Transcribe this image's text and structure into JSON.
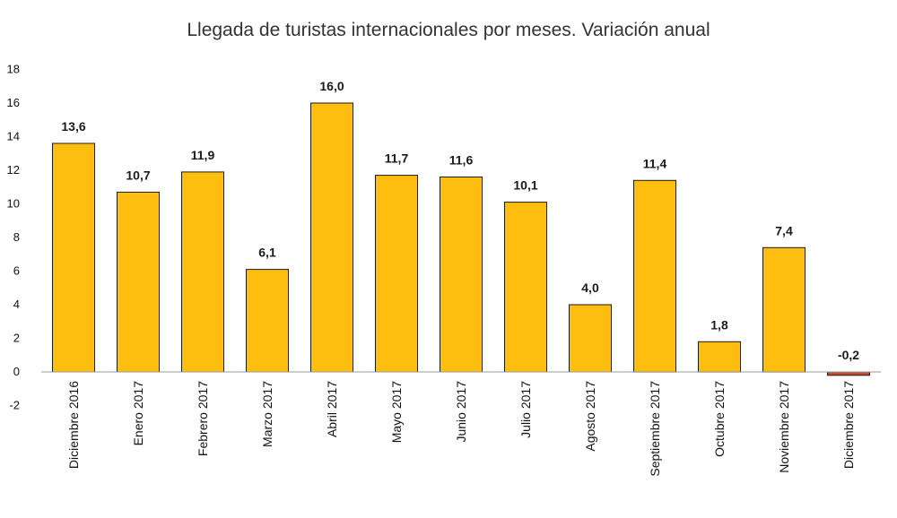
{
  "chart_data": {
    "type": "bar",
    "title": "Llegada de turistas internacionales por meses. Variación anual",
    "categories": [
      "Diciembre 2016",
      "Enero 2017",
      "Febrero 2017",
      "Marzo 2017",
      "Abril 2017",
      "Mayo 2017",
      "Junio 2017",
      "Julio 2017",
      "Agosto 2017",
      "Septiembre 2017",
      "Octubre 2017",
      "Noviembre 2017",
      "Diciembre 2017"
    ],
    "values": [
      13.6,
      10.7,
      11.9,
      6.1,
      16.0,
      11.7,
      11.6,
      10.1,
      4.0,
      11.4,
      1.8,
      7.4,
      -0.2
    ],
    "value_labels": [
      "13,6",
      "10,7",
      "11,9",
      "6,1",
      "16,0",
      "11,7",
      "11,6",
      "10,1",
      "4,0",
      "11,4",
      "1,8",
      "7,4",
      "-0,2"
    ],
    "y_ticks": [
      -2,
      0,
      2,
      4,
      6,
      8,
      10,
      12,
      14,
      16,
      18
    ],
    "y_tick_labels": [
      "-2",
      "0",
      "2",
      "4",
      "6",
      "8",
      "10",
      "12",
      "14",
      "16",
      "18"
    ],
    "ylim": [
      -2,
      18
    ],
    "xlabel": "",
    "ylabel": "",
    "grid": false,
    "legend": "none",
    "colors": {
      "positive": "#FDBE10",
      "negative": "#C0502D",
      "border": "#1a1a1a",
      "axis": "#9a9a9a"
    }
  }
}
